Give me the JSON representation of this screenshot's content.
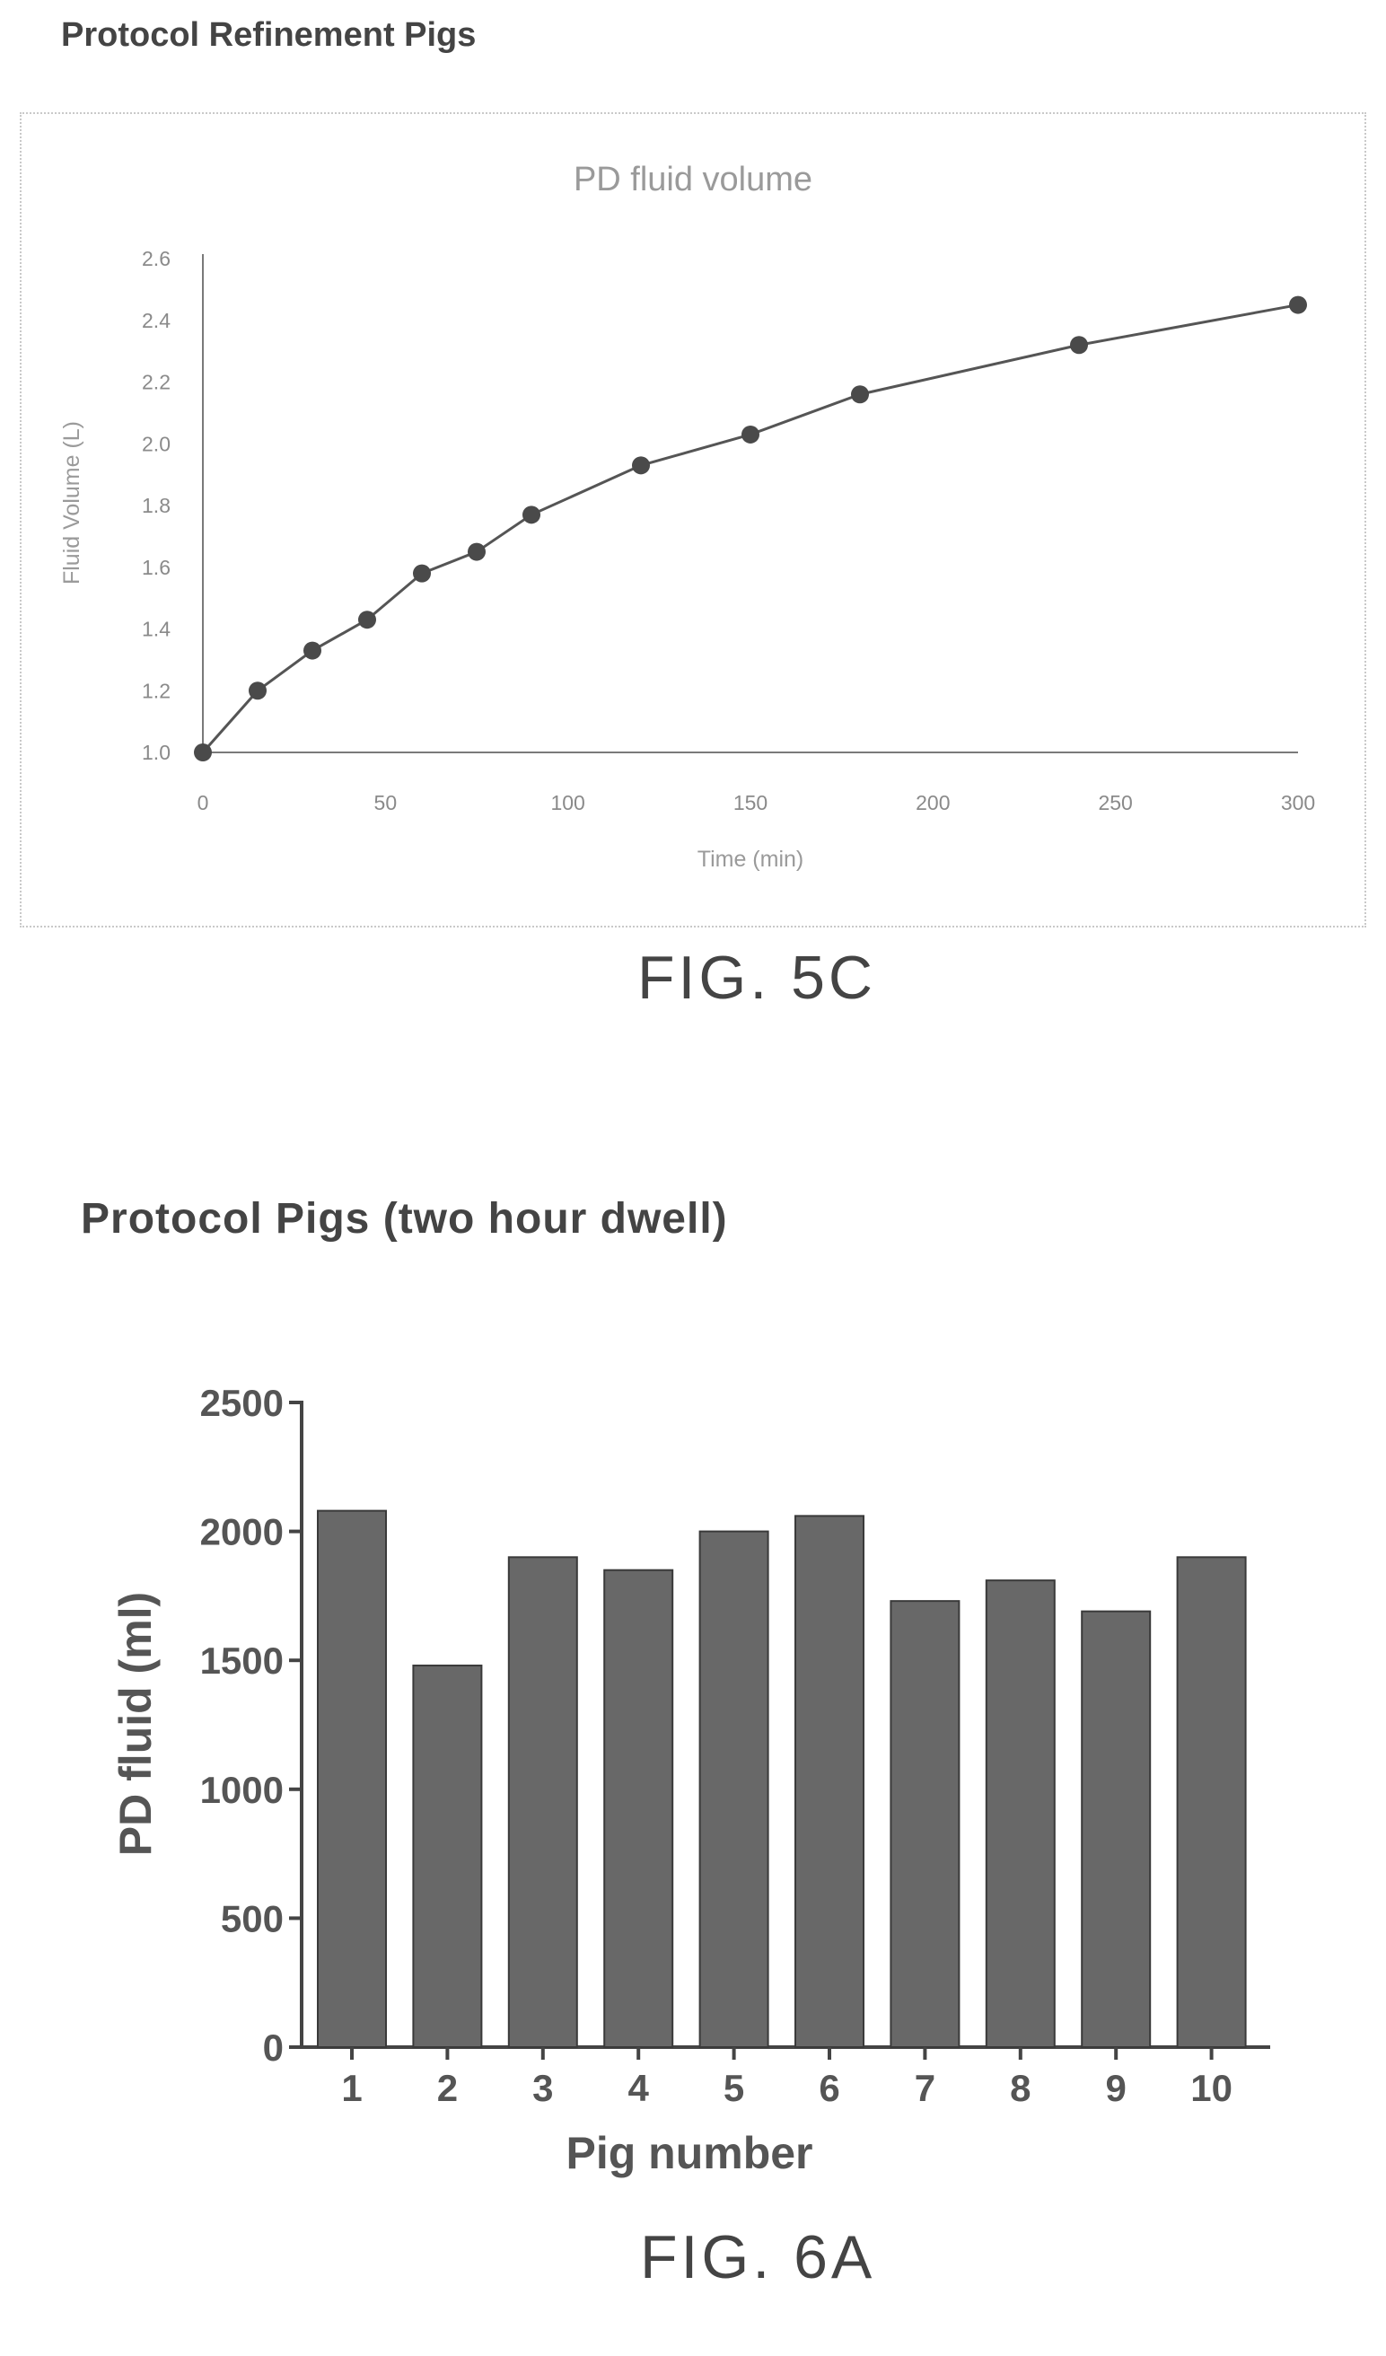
{
  "headings": {
    "fig5c": "Protocol Refinement Pigs",
    "fig6a": "Protocol Pigs (two hour dwell)"
  },
  "figure_labels": {
    "fig5c": "FIG. 5C",
    "fig6a": "FIG. 6A"
  },
  "colors": {
    "line": "#555555",
    "marker": "#4a4a4a",
    "bar": "#686868",
    "axis": "#444444"
  },
  "chart_data": [
    {
      "type": "line",
      "title": "PD fluid volume",
      "xlabel": "Time (min)",
      "ylabel": "Fluid Volume (L)",
      "xlim": [
        0,
        300
      ],
      "ylim": [
        1.0,
        2.6
      ],
      "xticks": [
        "0",
        "50",
        "100",
        "150",
        "200",
        "250",
        "300"
      ],
      "yticks": [
        "1.0",
        "1.2",
        "1.4",
        "1.6",
        "1.8",
        "2.0",
        "2.2",
        "2.4",
        "2.6"
      ],
      "grid": false,
      "x": [
        0,
        15,
        30,
        45,
        60,
        75,
        90,
        120,
        150,
        180,
        240,
        300
      ],
      "y": [
        1.0,
        1.2,
        1.33,
        1.43,
        1.58,
        1.65,
        1.77,
        1.93,
        2.03,
        2.16,
        2.32,
        2.45
      ]
    },
    {
      "type": "bar",
      "xlabel": "Pig number",
      "ylabel": "PD fluid (ml)",
      "ylim": [
        0,
        2500
      ],
      "yticks": [
        "0",
        "500",
        "1000",
        "1500",
        "2000",
        "2500"
      ],
      "categories": [
        "1",
        "2",
        "3",
        "4",
        "5",
        "6",
        "7",
        "8",
        "9",
        "10"
      ],
      "values": [
        2080,
        1480,
        1900,
        1850,
        2000,
        2060,
        1730,
        1810,
        1690,
        1900
      ]
    }
  ]
}
